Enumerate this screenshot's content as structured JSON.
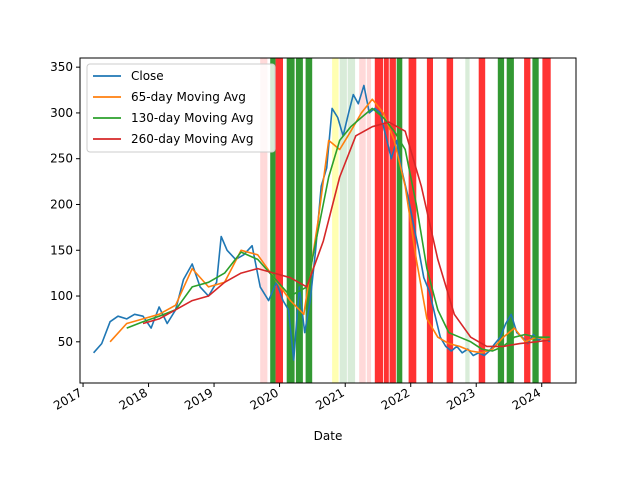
{
  "chart_data": {
    "type": "line",
    "title": "",
    "xlabel": "Date",
    "ylabel": "",
    "xlim": [
      "2016-12-15",
      "2024-07-10"
    ],
    "ylim": [
      5,
      360
    ],
    "x_ticks": [
      "2017",
      "2018",
      "2019",
      "2020",
      "2021",
      "2022",
      "2023",
      "2024"
    ],
    "y_ticks": [
      50,
      100,
      150,
      200,
      250,
      300,
      350
    ],
    "grid": false,
    "legend": "top-left",
    "series": [
      {
        "name": "Close",
        "color": "#1f77b4",
        "x": [
          "2017-03-01",
          "2017-04-15",
          "2017-06-01",
          "2017-07-15",
          "2017-09-01",
          "2017-10-15",
          "2017-12-01",
          "2018-01-15",
          "2018-03-01",
          "2018-04-15",
          "2018-06-01",
          "2018-07-15",
          "2018-09-01",
          "2018-10-15",
          "2018-12-01",
          "2019-01-15",
          "2019-02-10",
          "2019-03-15",
          "2019-05-01",
          "2019-06-15",
          "2019-08-01",
          "2019-09-15",
          "2019-11-01",
          "2019-12-15",
          "2020-01-20",
          "2020-02-20",
          "2020-03-20",
          "2020-04-20",
          "2020-05-20",
          "2020-06-20",
          "2020-07-20",
          "2020-08-20",
          "2020-09-20",
          "2020-10-20",
          "2020-11-20",
          "2020-12-20",
          "2021-01-20",
          "2021-02-15",
          "2021-03-15",
          "2021-04-15",
          "2021-05-15",
          "2021-06-15",
          "2021-07-15",
          "2021-08-15",
          "2021-09-15",
          "2021-10-15",
          "2021-11-15",
          "2021-12-15",
          "2022-01-15",
          "2022-02-15",
          "2022-03-15",
          "2022-04-15",
          "2022-05-15",
          "2022-06-15",
          "2022-07-15",
          "2022-08-15",
          "2022-09-15",
          "2022-10-15",
          "2022-11-15",
          "2022-12-15",
          "2023-01-15",
          "2023-02-15",
          "2023-03-15",
          "2023-04-15",
          "2023-05-15",
          "2023-06-15",
          "2023-07-15",
          "2023-08-15",
          "2023-09-15",
          "2023-10-15",
          "2023-11-15",
          "2023-12-15",
          "2024-01-15",
          "2024-02-15"
        ],
        "values": [
          38,
          48,
          72,
          78,
          75,
          80,
          78,
          65,
          88,
          70,
          85,
          118,
          135,
          110,
          100,
          115,
          165,
          150,
          140,
          145,
          155,
          110,
          95,
          115,
          95,
          85,
          30,
          110,
          60,
          95,
          150,
          220,
          240,
          305,
          295,
          275,
          300,
          320,
          310,
          330,
          300,
          305,
          300,
          275,
          250,
          270,
          235,
          210,
          180,
          150,
          120,
          105,
          80,
          55,
          45,
          40,
          45,
          38,
          42,
          35,
          38,
          35,
          40,
          48,
          55,
          70,
          80,
          60,
          55,
          48,
          58,
          52,
          55,
          50
        ]
      },
      {
        "name": "65-day Moving Avg",
        "color": "#ff7f0e",
        "x": [
          "2017-06-01",
          "2017-09-01",
          "2017-12-01",
          "2018-03-01",
          "2018-06-01",
          "2018-09-01",
          "2018-12-01",
          "2019-03-01",
          "2019-06-01",
          "2019-09-01",
          "2019-12-01",
          "2020-03-01",
          "2020-05-15",
          "2020-08-01",
          "2020-10-01",
          "2020-12-01",
          "2021-02-01",
          "2021-04-01",
          "2021-06-01",
          "2021-08-01",
          "2021-10-01",
          "2021-12-01",
          "2022-02-01",
          "2022-04-01",
          "2022-06-01",
          "2022-08-01",
          "2022-10-01",
          "2022-12-01",
          "2023-02-01",
          "2023-04-01",
          "2023-06-01",
          "2023-08-01",
          "2023-10-01",
          "2023-12-01",
          "2024-02-15"
        ],
        "values": [
          50,
          70,
          75,
          80,
          90,
          130,
          110,
          115,
          150,
          145,
          120,
          95,
          80,
          180,
          270,
          260,
          280,
          300,
          315,
          300,
          270,
          220,
          140,
          75,
          55,
          48,
          45,
          40,
          38,
          42,
          55,
          65,
          50,
          55,
          52
        ]
      },
      {
        "name": "130-day Moving Avg",
        "color": "#2ca02c",
        "x": [
          "2017-09-01",
          "2017-12-01",
          "2018-03-01",
          "2018-06-01",
          "2018-09-01",
          "2018-12-01",
          "2019-03-01",
          "2019-06-01",
          "2019-09-01",
          "2019-12-01",
          "2020-03-01",
          "2020-06-01",
          "2020-08-01",
          "2020-10-01",
          "2020-12-01",
          "2021-02-01",
          "2021-04-01",
          "2021-06-01",
          "2021-08-01",
          "2021-10-01",
          "2021-12-01",
          "2022-02-01",
          "2022-04-01",
          "2022-06-01",
          "2022-08-01",
          "2022-10-01",
          "2022-12-01",
          "2023-02-01",
          "2023-04-01",
          "2023-06-01",
          "2023-08-01",
          "2023-10-01",
          "2023-12-01",
          "2024-02-15"
        ],
        "values": [
          65,
          72,
          78,
          85,
          110,
          115,
          125,
          148,
          140,
          120,
          100,
          110,
          170,
          230,
          270,
          285,
          295,
          305,
          295,
          280,
          260,
          200,
          130,
          85,
          60,
          55,
          50,
          42,
          40,
          45,
          55,
          58,
          55,
          55
        ]
      },
      {
        "name": "260-day Moving Avg",
        "color": "#d62728",
        "x": [
          "2017-12-01",
          "2018-03-01",
          "2018-06-01",
          "2018-09-01",
          "2018-12-01",
          "2019-03-01",
          "2019-06-01",
          "2019-09-01",
          "2019-12-01",
          "2020-03-01",
          "2020-06-01",
          "2020-09-01",
          "2020-12-01",
          "2021-03-01",
          "2021-06-01",
          "2021-09-01",
          "2021-12-01",
          "2022-03-01",
          "2022-06-01",
          "2022-09-01",
          "2022-12-01",
          "2023-03-01",
          "2023-06-01",
          "2023-09-01",
          "2023-12-01",
          "2024-02-15"
        ],
        "values": [
          70,
          75,
          85,
          95,
          100,
          115,
          125,
          130,
          125,
          120,
          110,
          160,
          230,
          275,
          285,
          290,
          280,
          220,
          140,
          80,
          55,
          45,
          45,
          48,
          50,
          52
        ]
      }
    ],
    "bands": [
      {
        "start": "2019-09-15",
        "end": "2019-10-05",
        "color": "#ff0000",
        "alpha": 0.15
      },
      {
        "start": "2019-10-05",
        "end": "2019-10-25",
        "color": "#ff0000",
        "alpha": 0.15
      },
      {
        "start": "2019-11-10",
        "end": "2019-12-10",
        "color": "#008000",
        "alpha": 0.8
      },
      {
        "start": "2019-12-10",
        "end": "2020-01-20",
        "color": "#ff0000",
        "alpha": 0.8
      },
      {
        "start": "2020-02-10",
        "end": "2020-03-25",
        "color": "#008000",
        "alpha": 0.8
      },
      {
        "start": "2020-04-01",
        "end": "2020-05-10",
        "color": "#008000",
        "alpha": 0.8
      },
      {
        "start": "2020-05-25",
        "end": "2020-07-01",
        "color": "#008000",
        "alpha": 0.8
      },
      {
        "start": "2020-10-20",
        "end": "2020-11-25",
        "color": "#ffff00",
        "alpha": 0.3
      },
      {
        "start": "2020-12-01",
        "end": "2021-01-10",
        "color": "#008000",
        "alpha": 0.15
      },
      {
        "start": "2021-01-15",
        "end": "2021-02-25",
        "color": "#008000",
        "alpha": 0.15
      },
      {
        "start": "2021-03-20",
        "end": "2021-04-25",
        "color": "#ff0000",
        "alpha": 0.15
      },
      {
        "start": "2021-05-01",
        "end": "2021-05-25",
        "color": "#ff0000",
        "alpha": 0.15
      },
      {
        "start": "2021-06-15",
        "end": "2021-08-01",
        "color": "#ff0000",
        "alpha": 0.8
      },
      {
        "start": "2021-08-05",
        "end": "2021-09-01",
        "color": "#ff0000",
        "alpha": 0.8
      },
      {
        "start": "2021-09-05",
        "end": "2021-10-10",
        "color": "#ff0000",
        "alpha": 0.8
      },
      {
        "start": "2021-10-15",
        "end": "2021-11-15",
        "color": "#008000",
        "alpha": 0.8
      },
      {
        "start": "2021-12-20",
        "end": "2022-02-01",
        "color": "#ff0000",
        "alpha": 0.8
      },
      {
        "start": "2022-04-01",
        "end": "2022-05-05",
        "color": "#ff0000",
        "alpha": 0.8
      },
      {
        "start": "2022-07-20",
        "end": "2022-08-25",
        "color": "#ff0000",
        "alpha": 0.8
      },
      {
        "start": "2022-11-01",
        "end": "2022-11-25",
        "color": "#008000",
        "alpha": 0.15
      },
      {
        "start": "2023-01-15",
        "end": "2023-02-20",
        "color": "#ff0000",
        "alpha": 0.8
      },
      {
        "start": "2023-05-01",
        "end": "2023-06-05",
        "color": "#008000",
        "alpha": 0.8
      },
      {
        "start": "2023-06-20",
        "end": "2023-07-30",
        "color": "#008000",
        "alpha": 0.8
      },
      {
        "start": "2023-09-25",
        "end": "2023-10-30",
        "color": "#ff0000",
        "alpha": 0.8
      },
      {
        "start": "2023-11-10",
        "end": "2023-12-15",
        "color": "#008000",
        "alpha": 0.8
      },
      {
        "start": "2024-01-05",
        "end": "2024-02-20",
        "color": "#ff0000",
        "alpha": 0.8
      }
    ]
  }
}
